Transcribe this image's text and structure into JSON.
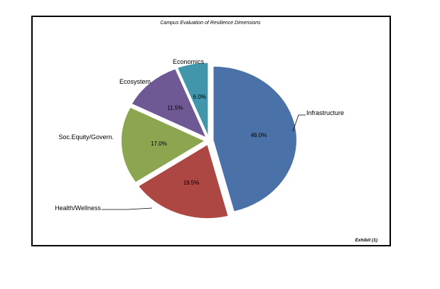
{
  "chart_data": {
    "type": "pie",
    "title": "Campus Evaluation of Resilience Dimensions",
    "exhibit": "Exhibit (1)",
    "slices": [
      {
        "label": "Infrastructure",
        "value": 46.0,
        "pct_label": "46.0%",
        "color": "#4a72a8"
      },
      {
        "label": "Health/Wellness",
        "value": 19.5,
        "pct_label": "19.5%",
        "color": "#ac4744"
      },
      {
        "label": "Soc.Equity/Govern.",
        "value": 17.0,
        "pct_label": "17.0%",
        "color": "#8ba64e"
      },
      {
        "label": "Ecosystem",
        "value": 11.5,
        "pct_label": "11.5%",
        "color": "#6e5994"
      },
      {
        "label": "Economics",
        "value": 6.0,
        "pct_label": "6.0%",
        "color": "#4196ab"
      }
    ],
    "exploded": true,
    "label_position": "outside-with-leaders",
    "legend": "none"
  }
}
